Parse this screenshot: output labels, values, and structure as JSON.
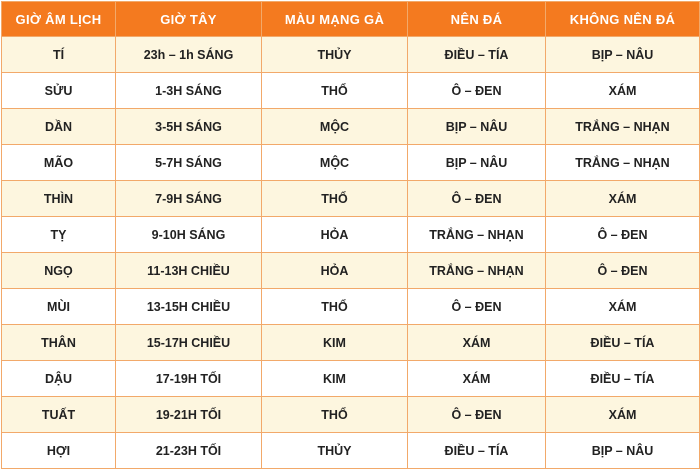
{
  "table": {
    "headers": [
      "GIỜ ÂM LỊCH",
      "GIỜ TÂY",
      "MÀU MẠNG GÀ",
      "NÊN ĐÁ",
      "KHÔNG NÊN ĐÁ"
    ],
    "rows": [
      [
        "TÍ",
        "23h – 1h SÁNG",
        "THỦY",
        "ĐIỀU – TÍA",
        "BỊP – NÂU"
      ],
      [
        "SỬU",
        "1-3H SÁNG",
        "THỔ",
        "Ô – ĐEN",
        "XÁM"
      ],
      [
        "DẦN",
        "3-5H SÁNG",
        "MỘC",
        "BỊP – NÂU",
        "TRẮNG – NHẠN"
      ],
      [
        "MÃO",
        "5-7H SÁNG",
        "MỘC",
        "BỊP – NÂU",
        "TRẮNG – NHẠN"
      ],
      [
        "THÌN",
        "7-9H SÁNG",
        "THỔ",
        "Ô – ĐEN",
        "XÁM"
      ],
      [
        "TỴ",
        "9-10H SÁNG",
        "HỎA",
        "TRẮNG – NHẠN",
        "Ô – ĐEN"
      ],
      [
        "NGỌ",
        "11-13H CHIỀU",
        "HỎA",
        "TRẮNG – NHẠN",
        "Ô – ĐEN"
      ],
      [
        "MÙI",
        "13-15H CHIỀU",
        "THỔ",
        "Ô – ĐEN",
        "XÁM"
      ],
      [
        "THÂN",
        "15-17H CHIỀU",
        "KIM",
        "XÁM",
        "ĐIỀU – TÍA"
      ],
      [
        "DẬU",
        "17-19H TỐI",
        "KIM",
        "XÁM",
        "ĐIỀU – TÍA"
      ],
      [
        "TUẤT",
        "19-21H TỐI",
        "THỔ",
        "Ô – ĐEN",
        "XÁM"
      ],
      [
        "HỢI",
        "21-23H TỐI",
        "THỦY",
        "ĐIỀU – TÍA",
        "BỊP – NÂU"
      ]
    ]
  },
  "colors": {
    "header_background": "#f47a1f",
    "header_text": "#ffffff",
    "row_odd_background": "#fdf6df",
    "row_even_background": "#ffffff",
    "border": "#f2a96a"
  }
}
